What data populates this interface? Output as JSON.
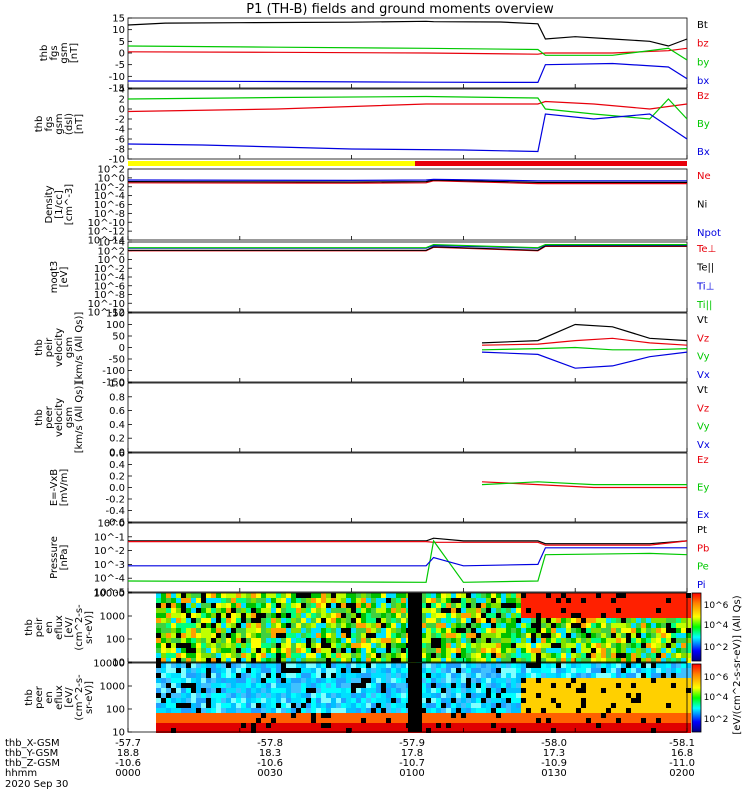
{
  "title": "P1 (TH-B) fields and ground moments overview",
  "footer": {
    "rows": [
      {
        "label": "thb_X-GSM",
        "values": [
          "-57.7",
          "-57.8",
          "-57.9",
          "-58.0",
          "-58.1"
        ]
      },
      {
        "label": "thb_Y-GSM",
        "values": [
          "18.8",
          "18.3",
          "17.8",
          "17.3",
          "16.8"
        ]
      },
      {
        "label": "thb_Z-GSM",
        "values": [
          "-10.6",
          "-10.6",
          "-10.7",
          "-10.9",
          "-11.0"
        ]
      },
      {
        "label": "hhmm",
        "values": [
          "0000",
          "0030",
          "0100",
          "0130",
          "0200"
        ]
      }
    ],
    "date": "2020 Sep 30"
  },
  "colorbars": [
    {
      "label": "[eV/(cm^2-s-sr-eV)] (All Qs)",
      "ticks": [
        "10^6",
        "10^4",
        "10^2"
      ]
    },
    {
      "label": "[eV/(cm^2-s-sr-eV)] (All Qs)",
      "ticks": [
        "10^6",
        "10^4",
        "10^2"
      ]
    }
  ],
  "colors": {
    "black": "#000000",
    "red": "#e8000b",
    "green": "#00c800",
    "blue": "#0000e0",
    "yellow": "#ffff00"
  },
  "chart_data": [
    {
      "type": "line",
      "ylabel": [
        "thb",
        "fgs",
        "gsm",
        "[nT]"
      ],
      "ylim": [
        -15,
        15
      ],
      "yticks": [
        "15",
        "10",
        "5",
        "0",
        "-5",
        "-10",
        "-15"
      ],
      "legend": [
        {
          "name": "Bt",
          "color": "black"
        },
        {
          "name": "bz",
          "color": "red"
        },
        {
          "name": "by",
          "color": "green"
        },
        {
          "name": "bx",
          "color": "blue"
        }
      ],
      "series": [
        {
          "name": "Bt",
          "color": "black",
          "x": [
            0,
            10,
            30,
            60,
            80,
            82,
            100,
            110,
            112,
            120,
            130,
            140,
            145,
            150
          ],
          "y": [
            12,
            12.8,
            13,
            13.2,
            13.6,
            13.4,
            13.3,
            12.5,
            6,
            7,
            6,
            5,
            3,
            6
          ]
        },
        {
          "name": "bz",
          "color": "red",
          "x": [
            0,
            40,
            80,
            110,
            112,
            130,
            145,
            150
          ],
          "y": [
            0.5,
            0.3,
            0,
            -0.5,
            0,
            0,
            1,
            2
          ]
        },
        {
          "name": "by",
          "color": "green",
          "x": [
            0,
            40,
            80,
            110,
            112,
            130,
            145,
            150
          ],
          "y": [
            3,
            2.5,
            2,
            1.5,
            -1,
            -1,
            2,
            -3
          ]
        },
        {
          "name": "bx",
          "color": "blue",
          "x": [
            0,
            40,
            80,
            110,
            112,
            130,
            145,
            150
          ],
          "y": [
            -12,
            -12.2,
            -12.5,
            -12.6,
            -5,
            -4.5,
            -6,
            -11
          ]
        }
      ]
    },
    {
      "type": "line",
      "ylabel": [
        "thb",
        "fgs",
        "gsm",
        "(dsl)",
        "[nT]"
      ],
      "ylim": [
        -10,
        4
      ],
      "yticks": [
        "4",
        "2",
        "0",
        "-2",
        "-4",
        "-6",
        "-8",
        "-10"
      ],
      "legend": [
        {
          "name": "Bz",
          "color": "red"
        },
        {
          "name": "By",
          "color": "green"
        },
        {
          "name": "Bx",
          "color": "blue"
        }
      ],
      "series": [
        {
          "name": "Bz",
          "color": "red",
          "x": [
            0,
            40,
            80,
            110,
            112,
            125,
            140,
            150
          ],
          "y": [
            -0.5,
            0,
            1,
            1,
            1.5,
            1,
            0,
            1
          ]
        },
        {
          "name": "By",
          "color": "green",
          "x": [
            0,
            40,
            80,
            110,
            112,
            125,
            140,
            145,
            150
          ],
          "y": [
            2,
            2.3,
            2.5,
            2.2,
            0,
            -1,
            -2,
            2,
            -2
          ]
        },
        {
          "name": "Bx",
          "color": "blue",
          "x": [
            0,
            20,
            60,
            90,
            110,
            112,
            125,
            140,
            150
          ],
          "y": [
            -7,
            -7.2,
            -8,
            -8.2,
            -8.5,
            -1,
            -2,
            -1,
            -6
          ]
        }
      ]
    },
    {
      "type": "line",
      "ylabel": [
        "Density",
        "[1/cc]",
        "[cm^-3]"
      ],
      "ylim_log": [
        -14,
        4
      ],
      "yticks": [
        "10^2",
        "10^0",
        "10^-2",
        "10^-4",
        "10^-6",
        "10^-8",
        "10^-10",
        "10^-12",
        "10^-14"
      ],
      "legend": [
        {
          "name": "Ne",
          "color": "red"
        },
        {
          "name": "Ni",
          "color": "black"
        },
        {
          "name": "Npot",
          "color": "blue"
        }
      ],
      "series": [
        {
          "name": "Ne",
          "color": "red",
          "x": [
            0,
            60,
            80,
            82,
            110,
            150
          ],
          "y": [
            0.5,
            0.4,
            0.5,
            1,
            0.3,
            0.3
          ]
        },
        {
          "name": "Ni",
          "color": "black",
          "x": [
            0,
            60,
            80,
            82,
            110,
            150
          ],
          "y": [
            0.8,
            0.7,
            0.8,
            1.2,
            0.6,
            0.6
          ]
        },
        {
          "name": "Npot",
          "color": "blue",
          "x": [
            0,
            60,
            80,
            82,
            110,
            150
          ],
          "y": [
            1.2,
            1.1,
            1.2,
            1.4,
            1.0,
            1.0
          ]
        }
      ]
    },
    {
      "type": "line",
      "ylabel": [
        "moqt3",
        "[eV]"
      ],
      "ylim_log": [
        -12,
        4
      ],
      "yticks": [
        "10^4",
        "10^2",
        "10^0",
        "10^-2",
        "10^-4",
        "10^-6",
        "10^-8",
        "10^-10",
        "10^-12"
      ],
      "legend": [
        {
          "name": "Te⊥",
          "color": "red"
        },
        {
          "name": "Te||",
          "color": "black"
        },
        {
          "name": "Ti⊥",
          "color": "blue"
        },
        {
          "name": "Ti||",
          "color": "green"
        }
      ],
      "series": [
        {
          "name": "Te⊥",
          "color": "red",
          "x": [
            0,
            50,
            80,
            82,
            110,
            112,
            145,
            150
          ],
          "y": [
            2,
            2,
            2,
            2.8,
            2,
            3,
            3,
            3
          ]
        },
        {
          "name": "Te||",
          "color": "black",
          "x": [
            0,
            50,
            80,
            82,
            110,
            112,
            145,
            150
          ],
          "y": [
            2.1,
            2.1,
            2.1,
            2.9,
            2.1,
            3.1,
            3.1,
            3.1
          ]
        },
        {
          "name": "Ti⊥",
          "color": "blue",
          "x": [
            0,
            50,
            80,
            82,
            110,
            112,
            145,
            150
          ],
          "y": [
            2.6,
            2.6,
            2.6,
            3.2,
            2.6,
            3.3,
            3.3,
            3.3
          ]
        },
        {
          "name": "Ti||",
          "color": "green",
          "x": [
            0,
            50,
            80,
            82,
            110,
            112,
            145,
            150
          ],
          "y": [
            2.7,
            2.7,
            2.7,
            3.4,
            2.7,
            3.4,
            3.4,
            3.4
          ]
        }
      ]
    },
    {
      "type": "line",
      "ylabel": [
        "thb",
        "peir",
        "velocity",
        "gsm",
        "[km/s (All Qs)]"
      ],
      "ylim": [
        -150,
        150
      ],
      "yticks": [
        "150",
        "100",
        "50",
        "0",
        "-50",
        "-100",
        "-150"
      ],
      "legend": [
        {
          "name": "Vt",
          "color": "black"
        },
        {
          "name": "Vz",
          "color": "red"
        },
        {
          "name": "Vy",
          "color": "green"
        },
        {
          "name": "Vx",
          "color": "blue"
        }
      ],
      "series": [
        {
          "name": "Vt",
          "color": "black",
          "x": [
            95,
            110,
            120,
            130,
            140,
            150
          ],
          "y": [
            20,
            30,
            100,
            90,
            40,
            30
          ]
        },
        {
          "name": "Vz",
          "color": "red",
          "x": [
            95,
            110,
            120,
            130,
            140,
            150
          ],
          "y": [
            10,
            15,
            30,
            40,
            20,
            10
          ]
        },
        {
          "name": "Vy",
          "color": "green",
          "x": [
            95,
            110,
            120,
            130,
            140,
            150
          ],
          "y": [
            -10,
            -5,
            0,
            -10,
            -10,
            -5
          ]
        },
        {
          "name": "Vx",
          "color": "blue",
          "x": [
            95,
            110,
            120,
            130,
            140,
            150
          ],
          "y": [
            -20,
            -30,
            -90,
            -80,
            -40,
            -20
          ]
        }
      ]
    },
    {
      "type": "line",
      "ylabel": [
        "thb",
        "peer",
        "velocity",
        "gsm",
        "[km/s (All Qs)]"
      ],
      "ylim": [
        0,
        1
      ],
      "yticks": [
        "1.0",
        "0.8",
        "0.6",
        "0.4",
        "0.2",
        "0.0"
      ],
      "legend": [
        {
          "name": "Vt",
          "color": "black"
        },
        {
          "name": "Vz",
          "color": "red"
        },
        {
          "name": "Vy",
          "color": "green"
        },
        {
          "name": "Vx",
          "color": "blue"
        }
      ],
      "series": []
    },
    {
      "type": "line",
      "ylabel": [
        "E=-VxB",
        "[mV/m]"
      ],
      "ylim": [
        -0.6,
        0.6
      ],
      "yticks": [
        "0.6",
        "0.4",
        "0.2",
        "0.0",
        "-0.2",
        "-0.4",
        "-0.6"
      ],
      "legend": [
        {
          "name": "Ez",
          "color": "red"
        },
        {
          "name": "Ey",
          "color": "green"
        },
        {
          "name": "Ex",
          "color": "blue"
        }
      ],
      "series": [
        {
          "name": "Ez",
          "color": "red",
          "x": [
            95,
            110,
            125,
            150
          ],
          "y": [
            0.1,
            0.05,
            0.0,
            0.0
          ]
        },
        {
          "name": "Ey",
          "color": "green",
          "x": [
            95,
            110,
            125,
            150
          ],
          "y": [
            0.05,
            0.1,
            0.05,
            0.05
          ]
        }
      ]
    },
    {
      "type": "line",
      "ylabel": [
        "Pressure",
        "[nPa]"
      ],
      "ylim_log": [
        -5,
        0
      ],
      "yticks": [
        "10^0",
        "10^-1",
        "10^-2",
        "10^-3",
        "10^-4",
        "10^-5"
      ],
      "legend": [
        {
          "name": "Pt",
          "color": "black"
        },
        {
          "name": "Pb",
          "color": "red"
        },
        {
          "name": "Pe",
          "color": "green"
        },
        {
          "name": "Pi",
          "color": "blue"
        }
      ],
      "series": [
        {
          "name": "Pt",
          "color": "black",
          "x": [
            0,
            80,
            82,
            90,
            110,
            112,
            140,
            150
          ],
          "y": [
            -1.3,
            -1.3,
            -1.1,
            -1.3,
            -1.3,
            -1.5,
            -1.5,
            -1.3
          ]
        },
        {
          "name": "Pb",
          "color": "red",
          "x": [
            0,
            80,
            82,
            90,
            110,
            112,
            140,
            150
          ],
          "y": [
            -1.35,
            -1.35,
            -1.4,
            -1.4,
            -1.4,
            -1.6,
            -1.6,
            -1.3
          ]
        },
        {
          "name": "Pe",
          "color": "green",
          "x": [
            0,
            80,
            82,
            90,
            110,
            112,
            140,
            150
          ],
          "y": [
            -4.2,
            -4.3,
            -1.3,
            -4.3,
            -4.2,
            -2.3,
            -2.2,
            -2.3
          ]
        },
        {
          "name": "Pi",
          "color": "blue",
          "x": [
            0,
            80,
            82,
            90,
            110,
            112,
            140,
            150
          ],
          "y": [
            -3.1,
            -3.1,
            -2.5,
            -3.1,
            -3.0,
            -1.8,
            -1.8,
            -1.8
          ]
        }
      ]
    },
    {
      "type": "heatmap",
      "ylabel": [
        "thb",
        "peir",
        "en",
        "eflux",
        "[eV/",
        "(cm^2-s-",
        "sr-eV)]"
      ],
      "yticks": [
        "10000",
        "1000",
        "100",
        "10"
      ]
    },
    {
      "type": "heatmap",
      "ylabel": [
        "thb",
        "peer",
        "en",
        "eflux",
        "[eV/",
        "(cm^2-s-",
        "sr-eV)]"
      ],
      "yticks": [
        "10000",
        "1000",
        "100",
        "10"
      ]
    }
  ]
}
